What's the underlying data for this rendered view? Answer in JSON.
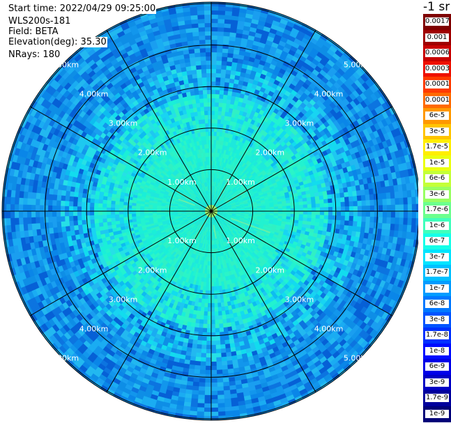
{
  "info": {
    "start_time": "Start time: 2022/04/29 09:25:00",
    "site": "WLS200s-181",
    "field": "Field: BETA",
    "elevation": "Elevation(deg): 35.30",
    "nrays": "NRays: 180"
  },
  "ring_labels": [
    "1.00km",
    "2.00km",
    "3.00km",
    "4.00km",
    "5.00km"
  ],
  "colorbar": {
    "unit_label": "-1 sr",
    "ticks": [
      "0.0017",
      "0.001",
      "0.0006",
      "0.0003",
      "0.00017",
      "0.0001",
      "6e-5",
      "3e-5",
      "1.7e-5",
      "1e-5",
      "6e-6",
      "3e-6",
      "1.7e-6",
      "1e-6",
      "6e-7",
      "3e-7",
      "1.7e-7",
      "1e-7",
      "6e-8",
      "3e-8",
      "1.7e-8",
      "1e-8",
      "6e-9",
      "3e-9",
      "1.7e-9",
      "1e-9"
    ],
    "colors": [
      "#7f0000",
      "#a00000",
      "#c80000",
      "#ee1000",
      "#ff3a00",
      "#ff6a00",
      "#ff9800",
      "#ffc400",
      "#ffee00",
      "#eaff10",
      "#c4ff38",
      "#98ff62",
      "#6cff8e",
      "#40ffbc",
      "#16ffe8",
      "#00e4ff",
      "#00c0ff",
      "#009cff",
      "#0078ff",
      "#0054ff",
      "#0030ff",
      "#000cff",
      "#0000e8",
      "#0000c4",
      "#00009c",
      "#000078"
    ]
  }
}
